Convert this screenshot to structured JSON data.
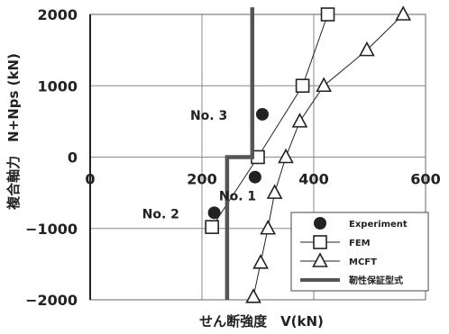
{
  "chart_data": {
    "type": "scatter",
    "title": "",
    "xlabel": "せん断強度　V(kN)",
    "ylabel": "複合軸力　N+Nps (kN)",
    "xlim": [
      0,
      600
    ],
    "ylim": [
      -2000,
      2000
    ],
    "x_ticks": [
      "0",
      "200",
      "400",
      "600"
    ],
    "y_ticks": [
      "2000",
      "1000",
      "0",
      "−1000",
      "−2000"
    ],
    "grid": true,
    "legend_position": "lower-right",
    "series": [
      {
        "name": "Experiment",
        "marker": "filled-circle",
        "color": "#222222",
        "points": [
          {
            "x": 308,
            "y": 600,
            "label": "No. 3"
          },
          {
            "x": 295,
            "y": -280,
            "label": "No. 1"
          },
          {
            "x": 222,
            "y": -780,
            "label": "No. 2"
          }
        ]
      },
      {
        "name": "FEM",
        "marker": "open-square",
        "color": "#222222",
        "points": [
          {
            "x": 218,
            "y": -980
          },
          {
            "x": 300,
            "y": 0
          },
          {
            "x": 380,
            "y": 1000
          },
          {
            "x": 425,
            "y": 2000
          }
        ]
      },
      {
        "name": "MCFT",
        "marker": "open-triangle",
        "color": "#222222",
        "points": [
          {
            "x": 292,
            "y": -1960
          },
          {
            "x": 305,
            "y": -1480
          },
          {
            "x": 318,
            "y": -1000
          },
          {
            "x": 330,
            "y": -500
          },
          {
            "x": 350,
            "y": 0
          },
          {
            "x": 375,
            "y": 500
          },
          {
            "x": 418,
            "y": 1000
          },
          {
            "x": 495,
            "y": 1500
          },
          {
            "x": 560,
            "y": 2000
          }
        ]
      },
      {
        "name": "靭性保証型式",
        "marker": "thick-line",
        "color": "#555555",
        "points": [
          {
            "x": 245,
            "y": -2000
          },
          {
            "x": 245,
            "y": 0
          },
          {
            "x": 290,
            "y": 0
          },
          {
            "x": 290,
            "y": 2100
          }
        ]
      }
    ]
  }
}
